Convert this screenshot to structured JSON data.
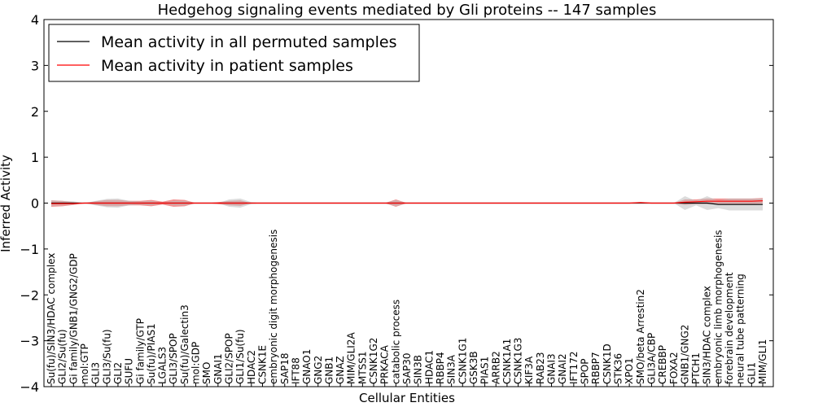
{
  "chart_data": {
    "type": "line",
    "title": "Hedgehog signaling events mediated by Gli proteins -- 147 samples",
    "xlabel": "Cellular Entities",
    "ylabel": "Inferred Activity",
    "ylim": [
      -4,
      4
    ],
    "yticks": [
      4,
      3,
      2,
      1,
      0,
      -1,
      -2,
      -3,
      -4
    ],
    "ytick_labels": [
      "4",
      "3",
      "2",
      "1",
      "0",
      "−1",
      "−2",
      "−3",
      "−4"
    ],
    "legend_position": "top-left",
    "categories": [
      "Su(fu)/SIN3/HDAC complex",
      "GLI2/Su(fu)",
      "Gi family/GNB1/GNG2/GDP",
      "mol:GTP",
      "GLI3",
      "GLI3/Su(fu)",
      "GLI2",
      "SUFU",
      "Gi family/GTP",
      "Su(fu)/PIAS1",
      "LGALS3",
      "GLI3/SPOP",
      "Su(fu)/Galectin3",
      "mol:GDP",
      "SMO",
      "GNAI1",
      "GLI2/SPOP",
      "GLI1/Su(fu)",
      "HDAC2",
      "CSNK1E",
      "embryonic digit morphogenesis",
      "SAP18",
      "IFT88",
      "GNAO1",
      "GNG2",
      "GNB1",
      "GNAZ",
      "MIM/GLI2A",
      "MTSS1",
      "CSNK1G2",
      "PRKACA",
      "catabolic process",
      "SAP30",
      "SIN3B",
      "HDAC1",
      "RBBP4",
      "SIN3A",
      "CSNK1G1",
      "GSK3B",
      "PIAS1",
      "ARRB2",
      "CSNK1A1",
      "CSNK1G3",
      "KIF3A",
      "RAB23",
      "GNAI3",
      "GNAI2",
      "IFT172",
      "SPOP",
      "RBBP7",
      "CSNK1D",
      "STK36",
      "XPO1",
      "SMO/beta Arrestin2",
      "GLI3A/CBP",
      "CREBBP",
      "FOXA2",
      "GNB1/GNG2",
      "PTCH1",
      "SIN3/HDAC complex",
      "embryonic limb morphogenesis",
      "forebrain development",
      "neural tube patterning",
      "GLI1",
      "MIM/GLI1"
    ],
    "series": [
      {
        "name": "Mean activity in all permuted samples",
        "color": "#000000",
        "band_color": "#bfbfbf",
        "values": [
          0.0,
          0.0,
          0.0,
          0.0,
          0.0,
          0.0,
          0.0,
          0.0,
          0.0,
          0.0,
          0.0,
          0.0,
          0.0,
          0.0,
          0.0,
          0.0,
          0.0,
          0.0,
          0.0,
          0.0,
          0.0,
          0.0,
          0.0,
          0.0,
          0.0,
          0.0,
          0.0,
          0.0,
          0.0,
          0.0,
          0.0,
          0.0,
          0.0,
          0.0,
          0.0,
          0.0,
          0.0,
          0.0,
          0.0,
          0.0,
          0.0,
          0.0,
          0.0,
          0.0,
          0.0,
          0.0,
          0.0,
          0.0,
          0.0,
          0.0,
          0.0,
          0.0,
          0.0,
          0.0,
          0.0,
          0.0,
          0.0,
          0.0,
          0.0,
          0.0,
          -0.03,
          -0.03,
          -0.03,
          -0.03,
          -0.03
        ],
        "spread": [
          0.06,
          0.05,
          0.04,
          0.0,
          0.05,
          0.09,
          0.1,
          0.05,
          0.03,
          0.05,
          0.0,
          0.05,
          0.05,
          0.0,
          0.0,
          0.0,
          0.08,
          0.1,
          0.02,
          0.0,
          0.0,
          0.0,
          0.0,
          0.0,
          0.0,
          0.0,
          0.0,
          0.0,
          0.0,
          0.0,
          0.0,
          0.07,
          0.0,
          0.0,
          0.0,
          0.0,
          0.0,
          0.0,
          0.0,
          0.0,
          0.0,
          0.0,
          0.0,
          0.0,
          0.0,
          0.0,
          0.0,
          0.0,
          0.0,
          0.0,
          0.0,
          0.0,
          0.0,
          0.0,
          0.0,
          0.0,
          0.0,
          0.15,
          0.05,
          0.15,
          0.08,
          0.13,
          0.13,
          0.13,
          0.13
        ]
      },
      {
        "name": "Mean activity in patient samples",
        "color": "#ff0000",
        "band_color": "#f08080",
        "values": [
          -0.01,
          -0.01,
          -0.01,
          0.0,
          0.0,
          0.0,
          0.0,
          0.0,
          0.0,
          0.0,
          0.0,
          0.0,
          0.0,
          0.0,
          0.0,
          0.0,
          0.0,
          0.0,
          0.0,
          0.0,
          0.0,
          0.0,
          0.0,
          0.0,
          0.0,
          0.0,
          0.0,
          0.0,
          0.0,
          0.0,
          0.0,
          0.0,
          0.0,
          0.0,
          0.0,
          0.0,
          0.0,
          0.0,
          0.0,
          0.0,
          0.0,
          0.0,
          0.0,
          0.0,
          0.0,
          0.0,
          0.0,
          0.0,
          0.0,
          0.0,
          0.0,
          0.0,
          0.0,
          0.01,
          0.0,
          0.0,
          0.0,
          0.02,
          0.03,
          0.04,
          0.04,
          0.04,
          0.04,
          0.04,
          0.05
        ],
        "spread": [
          0.07,
          0.06,
          0.03,
          0.0,
          0.04,
          0.07,
          0.07,
          0.05,
          0.05,
          0.07,
          0.03,
          0.08,
          0.07,
          0.0,
          0.0,
          0.02,
          0.05,
          0.06,
          0.0,
          0.0,
          0.0,
          0.0,
          0.0,
          0.0,
          0.0,
          0.0,
          0.0,
          0.0,
          0.0,
          0.0,
          0.0,
          0.08,
          0.0,
          0.0,
          0.0,
          0.0,
          0.0,
          0.0,
          0.0,
          0.0,
          0.0,
          0.0,
          0.0,
          0.0,
          0.0,
          0.0,
          0.0,
          0.0,
          0.0,
          0.0,
          0.0,
          0.0,
          0.0,
          0.0,
          0.0,
          0.0,
          0.0,
          0.06,
          0.05,
          0.06,
          0.06,
          0.06,
          0.06,
          0.06,
          0.06
        ]
      }
    ]
  }
}
